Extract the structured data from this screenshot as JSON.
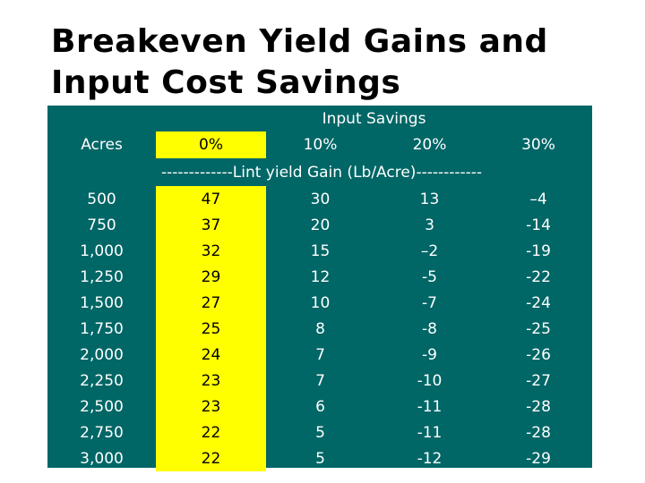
{
  "title": {
    "line1": "Breakeven Yield Gains and",
    "line2": "Input Cost Savings"
  },
  "table": {
    "group_header": "Input Savings",
    "row_header": "Acres",
    "columns": [
      "0%",
      "10%",
      "20%",
      "30%"
    ],
    "unit_row": "-------------Lint yield Gain (Lb/Acre)------------",
    "rows": [
      {
        "acres": "500",
        "values": [
          "47",
          "30",
          "13",
          "–4"
        ]
      },
      {
        "acres": "750",
        "values": [
          "37",
          "20",
          "3",
          "-14"
        ]
      },
      {
        "acres": "1,000",
        "values": [
          "32",
          "15",
          "–2",
          "-19"
        ]
      },
      {
        "acres": "1,250",
        "values": [
          "29",
          "12",
          "-5",
          "-22"
        ]
      },
      {
        "acres": "1,500",
        "values": [
          "27",
          "10",
          "-7",
          "-24"
        ]
      },
      {
        "acres": "1,750",
        "values": [
          "25",
          "8",
          "-8",
          "-25"
        ]
      },
      {
        "acres": "2,000",
        "values": [
          "24",
          "7",
          "-9",
          "-26"
        ]
      },
      {
        "acres": "2,250",
        "values": [
          "23",
          "7",
          "-10",
          "-27"
        ]
      },
      {
        "acres": "2,500",
        "values": [
          "23",
          "6",
          "-11",
          "-28"
        ]
      },
      {
        "acres": "2,750",
        "values": [
          "22",
          "5",
          "-11",
          "-28"
        ]
      },
      {
        "acres": "3,000",
        "values": [
          "22",
          "5",
          "-12",
          "-29"
        ]
      }
    ]
  },
  "colors": {
    "table_background": "#006666",
    "highlight_column": "#ffff00",
    "text_light": "#ffffff",
    "text_dark": "#000000"
  }
}
